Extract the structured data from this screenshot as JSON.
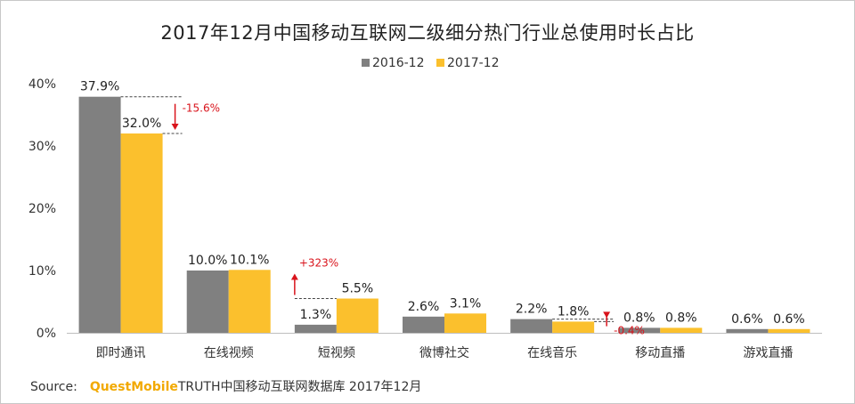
{
  "chart_data": {
    "type": "bar",
    "title": "2017年12月中国移动互联网二级细分热门行业总使用时长占比",
    "categories": [
      "即时通讯",
      "在线视频",
      "短视频",
      "微博社交",
      "在线音乐",
      "移动直播",
      "游戏直播"
    ],
    "series": [
      {
        "name": "2016-12",
        "values": [
          37.9,
          10.0,
          1.3,
          2.6,
          2.2,
          0.8,
          0.6
        ],
        "labels": [
          "37.9%",
          "10.0%",
          "1.3%",
          "2.6%",
          "2.2%",
          "0.8%",
          "0.6%"
        ],
        "color": "#808080"
      },
      {
        "name": "2017-12",
        "values": [
          32.0,
          10.1,
          5.5,
          3.1,
          1.8,
          0.8,
          0.6
        ],
        "labels": [
          "32.0%",
          "10.1%",
          "5.5%",
          "3.1%",
          "1.8%",
          "0.8%",
          "0.6%"
        ],
        "color": "#fbc02d"
      }
    ],
    "ylim": [
      0,
      40
    ],
    "yticks": [
      0,
      10,
      20,
      30,
      40
    ],
    "ytick_labels": [
      "0%",
      "10%",
      "20%",
      "30%",
      "40%"
    ],
    "legend_position": "top-center",
    "annotations": [
      {
        "category": "即时通讯",
        "direction": "down",
        "text": "-15.6%",
        "from": 37.9,
        "to": 32.0
      },
      {
        "category": "短视频",
        "direction": "up",
        "text": "+323%",
        "from": 1.3,
        "to": 5.5
      },
      {
        "category": "在线音乐",
        "direction": "down",
        "text": "-0.4%",
        "from": 2.2,
        "to": 1.8
      }
    ],
    "annotation_color": "#d9141c"
  },
  "source": {
    "label": "Source:",
    "brand": "QuestMobile",
    "text": "TRUTH中国移动互联网数据库 2017年12月"
  }
}
